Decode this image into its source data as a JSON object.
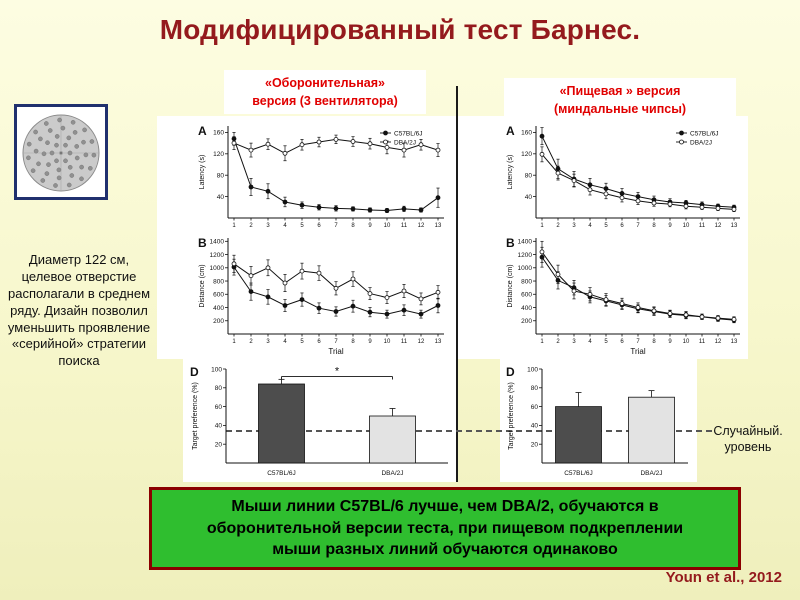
{
  "slide": {
    "title": "Модифицированный тест Барнес.",
    "citation": "Youn et al., 2012",
    "background_color": "#F8F8D0",
    "title_color": "#941A1D"
  },
  "headers": {
    "defensive_line1": "«Оборонительная»",
    "defensive_line2": "версия (3 вентилятора)",
    "food_line1": "«Пищевая » версия",
    "food_line2": "(миндальные чипсы)",
    "text_color": "#E10000"
  },
  "maze_note": "Диаметр 122 см, целевое отверстие располагали в среднем ряду. Дизайн позволил уменьшить проявление «серийной» стратегии поиска",
  "random_label": {
    "line1": "Случайный.",
    "line2": "уровень"
  },
  "conclusion": {
    "text": "Мыши линии  С57BL/6 лучше, чем DBA/2, обучаются в оборонительной  версии теста, при пищевом подкреплении мыши  разных линий  обучаются одинаково",
    "background_color": "#2FBE2F",
    "border_color": "#8B0000"
  },
  "chart_data": [
    {
      "id": "defensive-latency",
      "panel": "A",
      "type": "line",
      "legend": true,
      "ylabel": "Latency (s)",
      "xlabel": "",
      "ylim": [
        0,
        172
      ],
      "yticks": [
        40,
        80,
        120,
        160
      ],
      "x": [
        1,
        2,
        3,
        4,
        5,
        6,
        7,
        8,
        9,
        10,
        11,
        12,
        13
      ],
      "series": [
        {
          "name": "C57BL/6J",
          "marker": "filled",
          "values": [
            148,
            58,
            50,
            30,
            24,
            20,
            18,
            17,
            15,
            14,
            17,
            15,
            38
          ],
          "err": [
            12,
            16,
            14,
            9,
            6,
            5,
            5,
            4,
            4,
            4,
            5,
            4,
            18
          ]
        },
        {
          "name": "DBA/2J",
          "marker": "open",
          "values": [
            140,
            127,
            138,
            121,
            137,
            142,
            147,
            143,
            139,
            132,
            127,
            137,
            127
          ],
          "err": [
            12,
            13,
            10,
            14,
            10,
            9,
            8,
            9,
            10,
            12,
            13,
            10,
            12
          ]
        }
      ]
    },
    {
      "id": "defensive-distance",
      "panel": "B",
      "type": "line",
      "legend": false,
      "ylabel": "Distance (cm)",
      "xlabel": "Trial",
      "ylim": [
        0,
        1450
      ],
      "yticks": [
        200,
        400,
        600,
        800,
        1000,
        1200,
        1400
      ],
      "x": [
        1,
        2,
        3,
        4,
        5,
        6,
        7,
        8,
        9,
        10,
        11,
        12,
        13
      ],
      "series": [
        {
          "name": "C57BL/6J",
          "marker": "filled",
          "values": [
            1010,
            640,
            560,
            430,
            520,
            390,
            340,
            420,
            330,
            300,
            360,
            300,
            430
          ],
          "err": [
            120,
            130,
            110,
            90,
            100,
            80,
            70,
            90,
            70,
            60,
            80,
            60,
            110
          ]
        },
        {
          "name": "DBA/2J",
          "marker": "open",
          "values": [
            1060,
            880,
            1000,
            770,
            950,
            920,
            690,
            830,
            610,
            550,
            650,
            530,
            630
          ],
          "err": [
            130,
            140,
            120,
            130,
            120,
            110,
            100,
            110,
            90,
            90,
            100,
            90,
            100
          ]
        }
      ]
    },
    {
      "id": "defensive-preference",
      "panel": "D",
      "type": "bar",
      "ylabel": "Target preference (%)",
      "ylim": [
        0,
        100
      ],
      "yticks": [
        20,
        40,
        60,
        80,
        100
      ],
      "categories": [
        "C57BL/6J",
        "DBA/2J"
      ],
      "values": [
        84,
        50
      ],
      "errors": [
        5,
        8
      ],
      "significance": "*",
      "random_level": 33,
      "bar_colors": [
        "#4D4D4D",
        "#E3E3E3"
      ]
    },
    {
      "id": "food-latency",
      "panel": "A",
      "type": "line",
      "legend": true,
      "ylabel": "Latency (s)",
      "xlabel": "",
      "ylim": [
        0,
        172
      ],
      "yticks": [
        40,
        80,
        120,
        160
      ],
      "x": [
        1,
        2,
        3,
        4,
        5,
        6,
        7,
        8,
        9,
        10,
        11,
        12,
        13
      ],
      "series": [
        {
          "name": "C57BL/6J",
          "marker": "filled",
          "values": [
            153,
            92,
            73,
            62,
            55,
            46,
            40,
            34,
            30,
            28,
            25,
            22,
            20
          ],
          "err": [
            16,
            18,
            14,
            12,
            10,
            9,
            8,
            7,
            6,
            5,
            5,
            4,
            4
          ]
        },
        {
          "name": "DBA/2J",
          "marker": "open",
          "values": [
            119,
            84,
            70,
            53,
            45,
            38,
            32,
            28,
            26,
            22,
            20,
            18,
            16
          ],
          "err": [
            14,
            13,
            12,
            10,
            9,
            8,
            7,
            6,
            5,
            5,
            4,
            4,
            4
          ]
        }
      ]
    },
    {
      "id": "food-distance",
      "panel": "B",
      "type": "line",
      "legend": false,
      "ylabel": "Distance (cm)",
      "xlabel": "Trial",
      "ylim": [
        0,
        1450
      ],
      "yticks": [
        200,
        400,
        600,
        800,
        1000,
        1200,
        1400
      ],
      "x": [
        1,
        2,
        3,
        4,
        5,
        6,
        7,
        8,
        9,
        10,
        11,
        12,
        13
      ],
      "series": [
        {
          "name": "C57BL/6J",
          "marker": "filled",
          "values": [
            1160,
            810,
            700,
            560,
            500,
            440,
            380,
            340,
            300,
            280,
            260,
            230,
            210
          ],
          "err": [
            150,
            130,
            110,
            90,
            80,
            70,
            60,
            60,
            50,
            50,
            40,
            40,
            40
          ]
        },
        {
          "name": "DBA/2J",
          "marker": "open",
          "values": [
            1240,
            900,
            650,
            600,
            520,
            460,
            400,
            350,
            310,
            290,
            260,
            240,
            220
          ],
          "err": [
            160,
            140,
            120,
            100,
            90,
            80,
            70,
            60,
            50,
            50,
            40,
            40,
            40
          ]
        }
      ]
    },
    {
      "id": "food-preference",
      "panel": "D",
      "type": "bar",
      "ylabel": "Target preference (%)",
      "ylim": [
        0,
        100
      ],
      "yticks": [
        20,
        40,
        60,
        80,
        100
      ],
      "categories": [
        "C57BL/6J",
        "DBA/2J"
      ],
      "values": [
        60,
        70
      ],
      "errors": [
        15,
        7
      ],
      "significance": "",
      "random_level": 33,
      "bar_colors": [
        "#4D4D4D",
        "#E3E3E3"
      ]
    }
  ]
}
